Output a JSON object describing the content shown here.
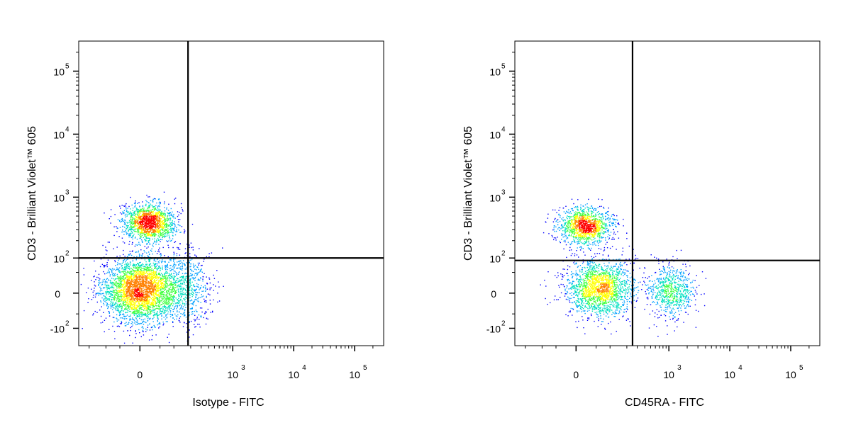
{
  "chart_data": [
    {
      "type": "scatter",
      "style": "density-dot-plot",
      "xlabel": "Isotype - FITC",
      "ylabel": "CD3 - Brilliant Violet™ 605",
      "x_scale": "biexponential",
      "y_scale": "biexponential",
      "xlim": [
        -300,
        300000
      ],
      "ylim": [
        -200,
        300000
      ],
      "x_ticks": [
        {
          "value": 0,
          "label": "0",
          "exp": ""
        },
        {
          "value": 1000,
          "label": "10",
          "exp": "3"
        },
        {
          "value": 10000,
          "label": "10",
          "exp": "4"
        },
        {
          "value": 100000,
          "label": "10",
          "exp": "5"
        }
      ],
      "y_ticks": [
        {
          "value": -100,
          "label": "-10",
          "exp": "2"
        },
        {
          "value": 0,
          "label": "0",
          "exp": ""
        },
        {
          "value": 100,
          "label": "10",
          "exp": "2"
        },
        {
          "value": 1000,
          "label": "10",
          "exp": "3"
        },
        {
          "value": 10000,
          "label": "10",
          "exp": "4"
        },
        {
          "value": 100000,
          "label": "10",
          "exp": "5"
        }
      ],
      "quadrant_gates": {
        "x": 180,
        "y": 100
      },
      "populations": [
        {
          "x": 0,
          "y": 8,
          "sx": 55,
          "sy": 45,
          "n": 3200
        },
        {
          "x": 20,
          "y": 400,
          "sx": 40,
          "sy": 180,
          "n": 1500
        },
        {
          "x": 150,
          "y": 15,
          "sx": 120,
          "sy": 55,
          "n": 650
        }
      ],
      "colors": [
        "#0000ff",
        "#00a0ff",
        "#00e0c0",
        "#40ff40",
        "#ffff00",
        "#ff8000",
        "#ff0000"
      ]
    },
    {
      "type": "scatter",
      "style": "density-dot-plot",
      "xlabel": "CD45RA - FITC",
      "ylabel": "CD3 - Brilliant Violet™ 605",
      "x_scale": "biexponential",
      "y_scale": "biexponential",
      "xlim": [
        -300,
        300000
      ],
      "ylim": [
        -200,
        300000
      ],
      "x_ticks": [
        {
          "value": 0,
          "label": "0",
          "exp": ""
        },
        {
          "value": 1000,
          "label": "10",
          "exp": "3"
        },
        {
          "value": 10000,
          "label": "10",
          "exp": "4"
        },
        {
          "value": 100000,
          "label": "10",
          "exp": "5"
        }
      ],
      "y_ticks": [
        {
          "value": -100,
          "label": "-10",
          "exp": "2"
        },
        {
          "value": 0,
          "label": "0",
          "exp": ""
        },
        {
          "value": 100,
          "label": "10",
          "exp": "2"
        },
        {
          "value": 1000,
          "label": "10",
          "exp": "3"
        },
        {
          "value": 10000,
          "label": "10",
          "exp": "4"
        },
        {
          "value": 100000,
          "label": "10",
          "exp": "5"
        }
      ],
      "quadrant_gates": {
        "x": 250,
        "y": 90
      },
      "populations": [
        {
          "x": 20,
          "y": 350,
          "sx": 40,
          "sy": 160,
          "n": 1300
        },
        {
          "x": 60,
          "y": 10,
          "sx": 80,
          "sy": 40,
          "n": 1800
        },
        {
          "x": 1100,
          "y": 5,
          "sx": 700,
          "sy": 35,
          "n": 700
        }
      ],
      "colors": [
        "#0000ff",
        "#00a0ff",
        "#00e0c0",
        "#40ff40",
        "#ffff00",
        "#ff8000",
        "#ff0000"
      ]
    }
  ]
}
